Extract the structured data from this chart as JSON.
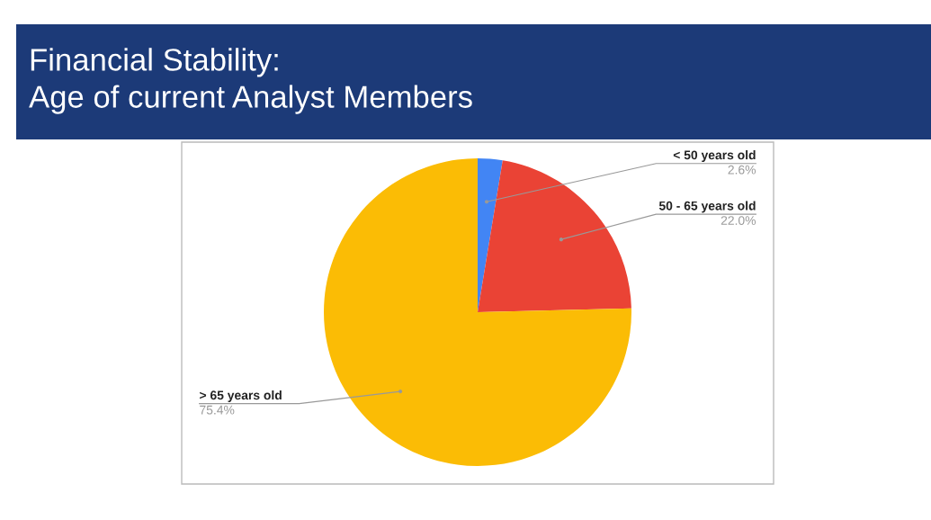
{
  "chart_data": {
    "type": "pie",
    "title": "Financial Stability:\nAge of current Analyst Members",
    "categories": [
      "< 50 years old",
      "50 - 65 years old",
      "> 65 years old"
    ],
    "values": [
      2.6,
      22.0,
      75.4
    ],
    "value_labels": [
      "2.6%",
      "22.0%",
      "75.4%"
    ],
    "colors": [
      "#4285f4",
      "#ea4335",
      "#fbbc05"
    ]
  }
}
